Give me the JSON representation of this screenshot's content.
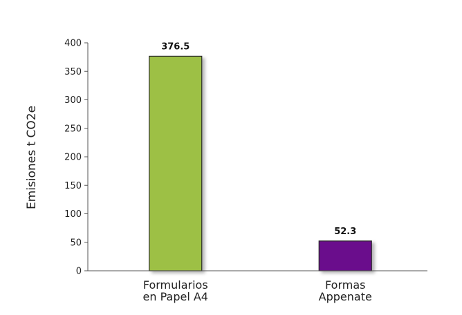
{
  "chart_data": {
    "type": "bar",
    "categories": [
      [
        "Formularios",
        "en Papel A4"
      ],
      [
        "Formas",
        "Appenate"
      ]
    ],
    "values": [
      376.5,
      52.3
    ],
    "value_labels": [
      "376.5",
      "52.3"
    ],
    "colors": [
      "#9dc044",
      "#6a0a8c"
    ],
    "title": "",
    "xlabel": "",
    "ylabel": "Emisiones t CO2e",
    "ylim": [
      0,
      400
    ],
    "yticks": [
      0,
      50,
      100,
      150,
      200,
      250,
      300,
      350,
      400
    ],
    "grid": false,
    "legend": "none"
  }
}
